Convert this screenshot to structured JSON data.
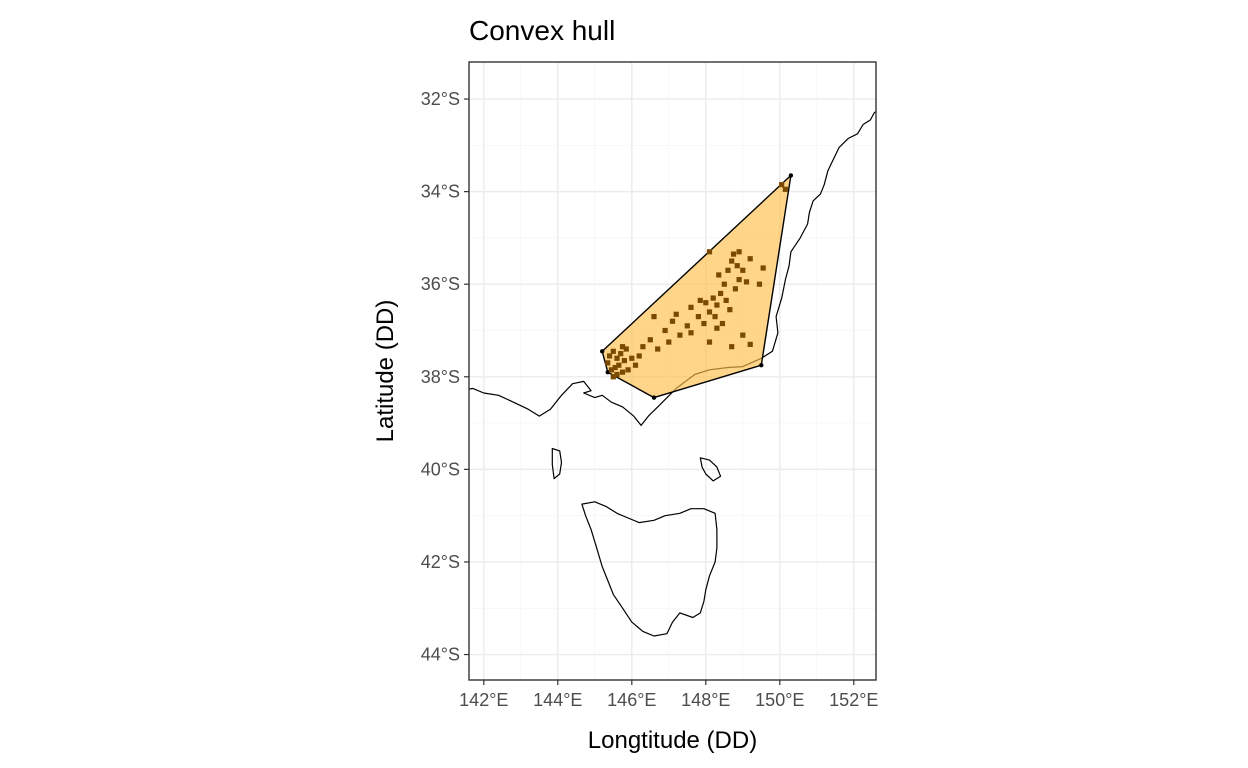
{
  "chart_data": {
    "type": "scatter",
    "title": "Convex hull",
    "xlabel": "Longtitude (DD)",
    "ylabel": "Latitude (DD)",
    "xlim": [
      141.6,
      152.6
    ],
    "ylim": [
      -44.55,
      -31.2
    ],
    "x_ticks": [
      142,
      144,
      146,
      148,
      150,
      152
    ],
    "x_tick_labels": [
      "142°E",
      "144°E",
      "146°E",
      "148°E",
      "150°E",
      "152°E"
    ],
    "y_ticks": [
      -32,
      -34,
      -36,
      -38,
      -40,
      -42,
      -44
    ],
    "y_tick_labels": [
      "32°S",
      "34°S",
      "36°S",
      "38°S",
      "40°S",
      "42°S",
      "44°S"
    ],
    "grid": true,
    "hull_fill": "#FDBF49",
    "hull_opacity": 0.65,
    "point_color": "#7A4A00",
    "hull": [
      [
        150.3,
        -33.65
      ],
      [
        149.5,
        -37.75
      ],
      [
        146.6,
        -38.45
      ],
      [
        145.35,
        -37.9
      ],
      [
        145.2,
        -37.45
      ]
    ],
    "points": [
      [
        150.05,
        -33.85
      ],
      [
        150.15,
        -33.95
      ],
      [
        145.4,
        -37.55
      ],
      [
        145.5,
        -37.45
      ],
      [
        145.6,
        -37.6
      ],
      [
        145.35,
        -37.7
      ],
      [
        145.55,
        -37.8
      ],
      [
        145.7,
        -37.5
      ],
      [
        145.65,
        -37.75
      ],
      [
        145.45,
        -37.85
      ],
      [
        145.8,
        -37.65
      ],
      [
        145.75,
        -37.9
      ],
      [
        145.5,
        -38.0
      ],
      [
        145.9,
        -37.85
      ],
      [
        145.6,
        -37.95
      ],
      [
        146.0,
        -37.6
      ],
      [
        145.85,
        -37.4
      ],
      [
        146.1,
        -37.75
      ],
      [
        145.75,
        -37.35
      ],
      [
        146.2,
        -37.55
      ],
      [
        146.5,
        -37.2
      ],
      [
        146.7,
        -37.4
      ],
      [
        146.6,
        -36.7
      ],
      [
        146.9,
        -37.0
      ],
      [
        147.1,
        -36.8
      ],
      [
        147.3,
        -37.1
      ],
      [
        147.2,
        -36.65
      ],
      [
        147.5,
        -36.9
      ],
      [
        147.6,
        -36.5
      ],
      [
        147.8,
        -36.7
      ],
      [
        147.95,
        -36.85
      ],
      [
        148.0,
        -36.4
      ],
      [
        148.1,
        -36.6
      ],
      [
        148.2,
        -36.3
      ],
      [
        148.3,
        -36.45
      ],
      [
        148.25,
        -36.7
      ],
      [
        148.4,
        -36.2
      ],
      [
        148.5,
        -36.0
      ],
      [
        148.35,
        -35.8
      ],
      [
        148.6,
        -35.7
      ],
      [
        148.7,
        -35.5
      ],
      [
        148.75,
        -35.35
      ],
      [
        148.85,
        -35.6
      ],
      [
        148.9,
        -35.9
      ],
      [
        149.0,
        -35.7
      ],
      [
        149.1,
        -35.95
      ],
      [
        149.2,
        -35.45
      ],
      [
        148.8,
        -36.1
      ],
      [
        149.45,
        -36.0
      ],
      [
        148.55,
        -36.35
      ],
      [
        148.65,
        -36.55
      ],
      [
        148.45,
        -36.85
      ],
      [
        149.0,
        -37.1
      ],
      [
        149.2,
        -37.3
      ],
      [
        148.7,
        -37.35
      ],
      [
        148.1,
        -37.25
      ],
      [
        147.6,
        -37.05
      ],
      [
        147.0,
        -37.25
      ],
      [
        146.3,
        -37.35
      ],
      [
        148.1,
        -35.3
      ],
      [
        149.55,
        -35.65
      ],
      [
        148.9,
        -35.3
      ],
      [
        148.3,
        -36.95
      ],
      [
        147.85,
        -36.35
      ]
    ]
  }
}
